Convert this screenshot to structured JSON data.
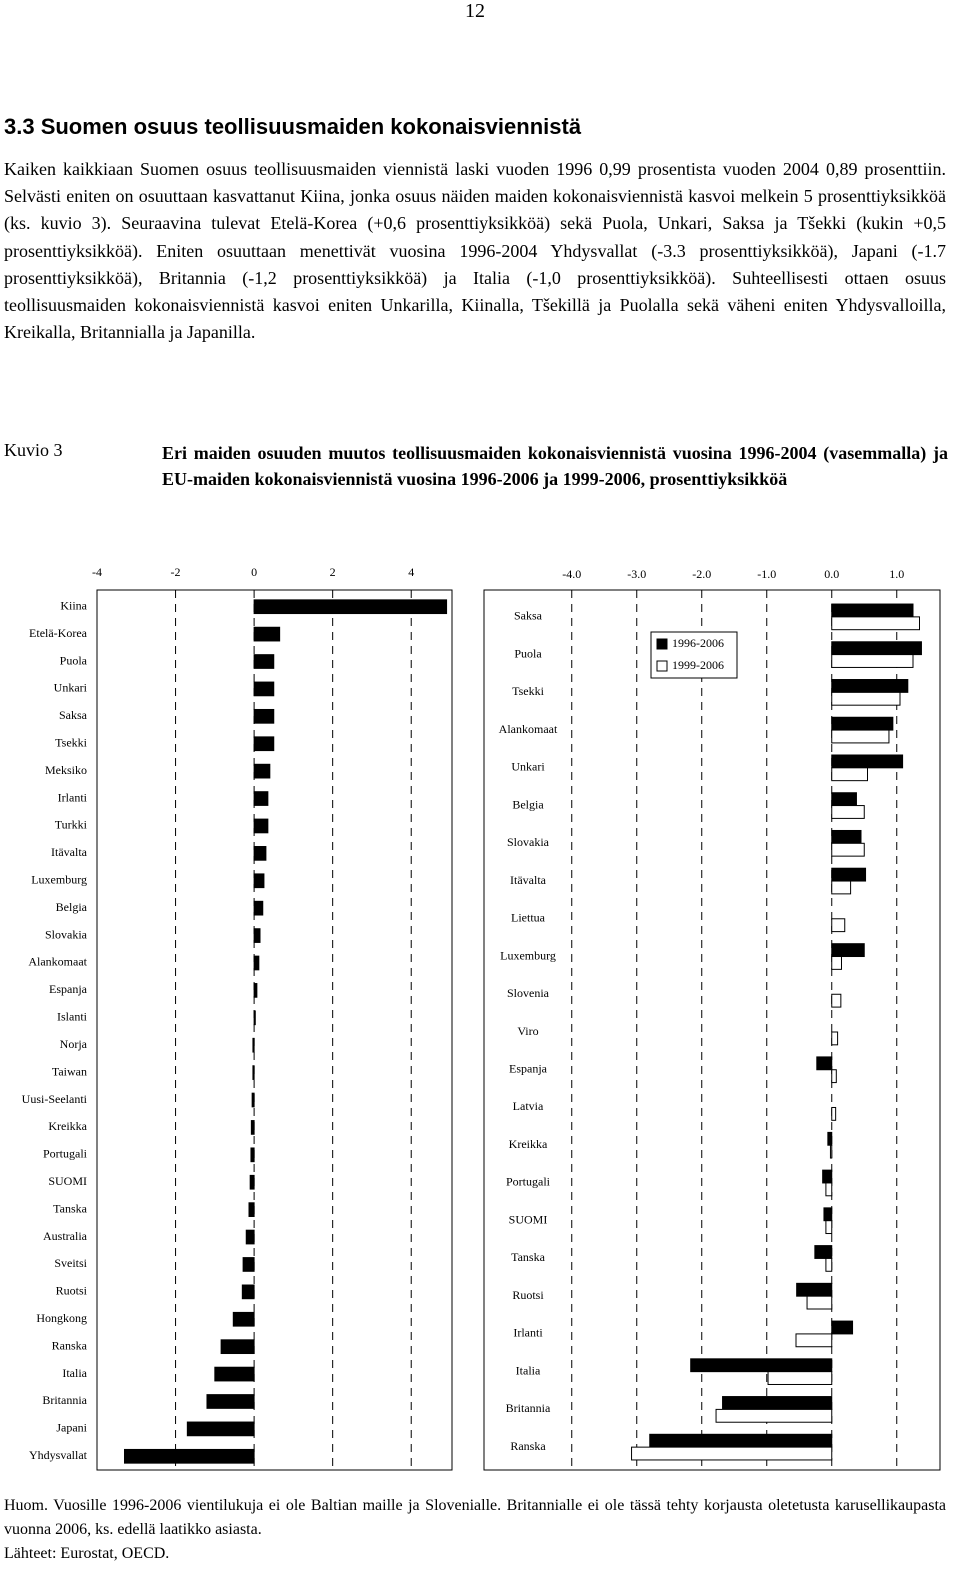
{
  "page_number": "12",
  "heading": "3.3 Suomen osuus teollisuusmaiden kokonaisviennistä",
  "paragraph": "Kaiken kaikkiaan Suomen osuus teollisuusmaiden viennistä laski vuoden 1996 0,99 prosentista vuoden 2004 0,89 prosenttiin. Selvästi eniten on osuuttaan kasvattanut Kiina, jonka osuus näiden maiden kokonaisviennistä kasvoi melkein 5 prosenttiyksikköä (ks. kuvio 3). Seuraavina tulevat Etelä-Korea (+0,6 prosenttiyksikköä) sekä Puola, Unkari, Saksa ja Tšekki (kukin +0,5 prosenttiyksikköä). Eniten osuuttaan menettivät vuosina 1996-2004 Yhdysvallat (-3.3 prosenttiyksikköä), Japani (-1.7 prosenttiyksikköä), Britannia (-1,2 prosenttiyksikköä) ja Italia (-1,0 prosenttiyksikköä). Suhteellisesti ottaen osuus teollisuusmaiden kokonaisviennistä kasvoi eniten Unkarilla, Kiinalla, Tšekillä ja Puolalla sekä väheni eniten Yhdysvalloilla, Kreikalla, Britannialla ja Japanilla.",
  "figure": {
    "label": "Kuvio 3",
    "caption": "Eri maiden osuuden muutos teollisuusmaiden kokonaisviennistä vuosina 1996-2004 (vasemmalla) ja EU-maiden kokonaisviennistä vuosina 1996-2006 ja 1999-2006, prosenttiyksikköä"
  },
  "chart_data": [
    {
      "type": "bar",
      "orientation": "horizontal",
      "categories": [
        "Kiina",
        "Etelä-Korea",
        "Puola",
        "Unkari",
        "Saksa",
        "Tsekki",
        "Meksiko",
        "Irlanti",
        "Turkki",
        "Itävalta",
        "Luxemburg",
        "Belgia",
        "Slovakia",
        "Alankomaat",
        "Espanja",
        "Islanti",
        "Norja",
        "Taiwan",
        "Uusi-Seelanti",
        "Kreikka",
        "Portugali",
        "SUOMI",
        "Tanska",
        "Australia",
        "Sveitsi",
        "Ruotsi",
        "Hongkong",
        "Ranska",
        "Italia",
        "Britannia",
        "Japani",
        "Yhdysvallat"
      ],
      "values": [
        4.9,
        0.65,
        0.5,
        0.5,
        0.5,
        0.5,
        0.4,
        0.35,
        0.35,
        0.3,
        0.25,
        0.22,
        0.15,
        0.12,
        0.07,
        0.03,
        -0.03,
        -0.03,
        -0.05,
        -0.07,
        -0.08,
        -0.1,
        -0.13,
        -0.2,
        -0.28,
        -0.3,
        -0.53,
        -0.84,
        -1.0,
        -1.2,
        -1.7,
        -3.3
      ],
      "color": "#000000",
      "xlim": [
        -4,
        5
      ],
      "xticks": [
        -4,
        -2,
        0,
        2,
        4
      ],
      "grid": true
    },
    {
      "type": "bar",
      "orientation": "horizontal",
      "categories": [
        "Saksa",
        "Puola",
        "Tsekki",
        "Alankomaat",
        "Unkari",
        "Belgia",
        "Slovakia",
        "Itävalta",
        "Liettua",
        "Luxemburg",
        "Slovenia",
        "Viro",
        "Espanja",
        "Latvia",
        "Kreikka",
        "Portugali",
        "SUOMI",
        "Tanska",
        "Ruotsi",
        "Irlanti",
        "Italia",
        "Britannia",
        "Ranska"
      ],
      "series": [
        {
          "name": "1996-2006",
          "color": "#000000",
          "values": [
            1.25,
            1.38,
            1.17,
            0.94,
            1.09,
            0.38,
            0.45,
            0.52,
            null,
            0.5,
            null,
            null,
            -0.23,
            null,
            -0.06,
            -0.14,
            -0.12,
            -0.26,
            -0.54,
            0.32,
            -2.17,
            -1.68,
            -2.8
          ]
        },
        {
          "name": "1999-2006",
          "color": "#ffffff",
          "values": [
            1.35,
            1.25,
            1.05,
            0.88,
            0.55,
            0.5,
            0.5,
            0.29,
            0.2,
            0.15,
            0.14,
            0.09,
            0.07,
            0.06,
            -0.02,
            -0.09,
            -0.09,
            -0.09,
            -0.38,
            -0.55,
            -0.98,
            -1.78,
            -3.08
          ]
        }
      ],
      "xlim": [
        -5.35,
        1.65
      ],
      "xticks": [
        {
          "value": -4,
          "label": "-4.0"
        },
        {
          "value": -3,
          "label": "-3.0"
        },
        {
          "value": -2,
          "label": "-2.0"
        },
        {
          "value": -1,
          "label": "-1.0"
        },
        {
          "value": 0,
          "label": "0.0"
        },
        {
          "value": 1,
          "label": "1.0"
        }
      ],
      "grid": true,
      "legend": "upper-right"
    }
  ],
  "note": "Huom. Vuosille 1996-2006 vientilukuja ei ole Baltian maille ja Slovenialle. Britannialle ei ole tässä tehty korjausta oletetusta karusellikaupasta vuonna 2006, ks. edellä laatikko asiasta.",
  "source": "Lähteet: Eurostat, OECD."
}
